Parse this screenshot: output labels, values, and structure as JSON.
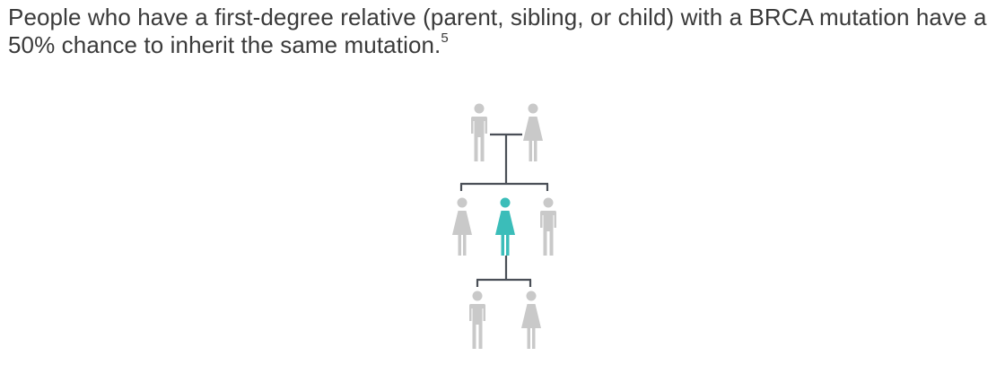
{
  "caption": {
    "text": "People who have a first-degree relative (parent, sibling, or child) with a BRCA mutation have a 50% chance to inherit the same mutation.",
    "footnote": "5"
  },
  "colors": {
    "text": "#3a3a3a",
    "relative_figure": "#c9c9c9",
    "highlighted_figure": "#3bbdb9",
    "connector_line": "#4a4f57"
  },
  "family_tree": {
    "parents": [
      {
        "sex": "male",
        "highlighted": false
      },
      {
        "sex": "female",
        "highlighted": false
      }
    ],
    "siblings": [
      {
        "sex": "female",
        "highlighted": false
      },
      {
        "sex": "female",
        "highlighted": true
      },
      {
        "sex": "male",
        "highlighted": false
      }
    ],
    "children": [
      {
        "sex": "male",
        "highlighted": false
      },
      {
        "sex": "female",
        "highlighted": false
      }
    ]
  }
}
